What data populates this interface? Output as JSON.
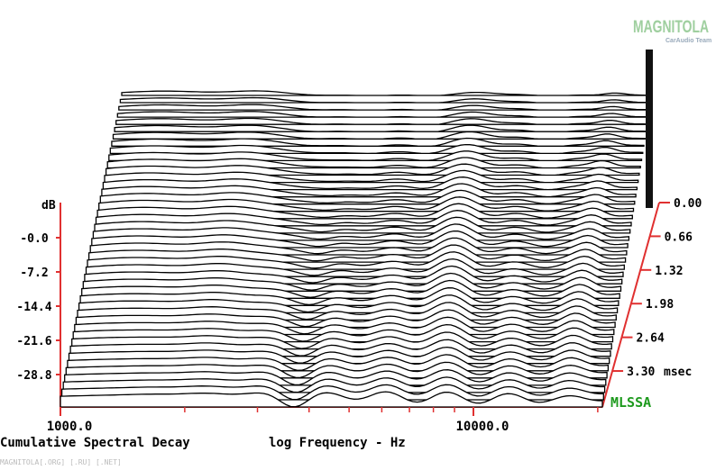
{
  "chart_data": {
    "type": "waterfall",
    "title": "Cumulative Spectral Decay",
    "xlabel": "log Frequency - Hz",
    "ylabel": "dB",
    "zlabel": "msec",
    "x_scale": "log",
    "x_ticks": [
      {
        "value": 1000,
        "label": "1000.0"
      },
      {
        "value": 10000,
        "label": "10000.0"
      }
    ],
    "x_minor_ticks": [
      2000,
      3000,
      4000,
      5000,
      6000,
      7000,
      8000,
      9000,
      20000
    ],
    "y_ticks": [
      {
        "value": 0.0,
        "label": "-0.0"
      },
      {
        "value": -7.2,
        "label": "-7.2"
      },
      {
        "value": -14.4,
        "label": "-14.4"
      },
      {
        "value": -21.6,
        "label": "-21.6"
      },
      {
        "value": -28.8,
        "label": "-28.8"
      }
    ],
    "z_ticks": [
      {
        "value": 0.0,
        "label": "0.00"
      },
      {
        "value": 0.66,
        "label": "0.66"
      },
      {
        "value": 1.32,
        "label": "1.32"
      },
      {
        "value": 1.98,
        "label": "1.98"
      },
      {
        "value": 2.64,
        "label": "2.64"
      },
      {
        "value": 3.3,
        "label": "3.30"
      }
    ],
    "slice_count": 44,
    "grid": false,
    "colors": {
      "axis": "#e03030",
      "lines": "#000000",
      "mlssa": "#1e9a1e",
      "watermark": "#9fcf9f"
    }
  },
  "software": "MLSSA",
  "watermark": {
    "brand": "MAGNITOLA",
    "team": "CarAudio Team",
    "footer": "MAGNITOLA[.ORG] [.RU] [.NET]"
  }
}
